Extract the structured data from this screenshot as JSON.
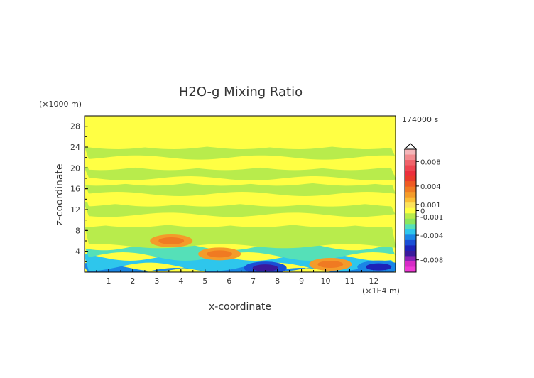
{
  "chart_data": {
    "type": "heatmap",
    "title": "H2O-g Mixing Ratio",
    "xlabel": "x-coordinate",
    "ylabel": "z-coordinate",
    "x_unit": "(×1E4 m)",
    "y_unit": "(×1000 m)",
    "time_label": "174000 s",
    "xlim": [
      0,
      12.9
    ],
    "ylim": [
      0,
      30
    ],
    "x_ticks": [
      "1",
      "2",
      "3",
      "4",
      "5",
      "6",
      "7",
      "8",
      "9",
      "10",
      "11",
      "12"
    ],
    "y_ticks": [
      "4",
      "8",
      "12",
      "16",
      "20",
      "24",
      "28"
    ],
    "colorbar": {
      "labels": [
        "0.008",
        "0.004",
        "0.001",
        "0",
        "-0.001",
        "-0.004",
        "-0.008"
      ],
      "levels": [
        {
          "value": 0.01,
          "color": "#f4b6b9"
        },
        {
          "value": 0.009,
          "color": "#f28c90"
        },
        {
          "value": 0.008,
          "color": "#f0636a"
        },
        {
          "value": 0.007,
          "color": "#ee4550"
        },
        {
          "value": 0.006,
          "color": "#ec2f3d"
        },
        {
          "value": 0.005,
          "color": "#ea3a2b"
        },
        {
          "value": 0.004,
          "color": "#ee5a24"
        },
        {
          "value": 0.003,
          "color": "#f07a22"
        },
        {
          "value": 0.002,
          "color": "#f49b2a"
        },
        {
          "value": 0.001,
          "color": "#fbbd34"
        },
        {
          "value": 0.0005,
          "color": "#fce25a"
        },
        {
          "value": 0.0,
          "color": "#ffff44"
        },
        {
          "value": -0.0005,
          "color": "#b8ec4c"
        },
        {
          "value": -0.001,
          "color": "#8ce65c"
        },
        {
          "value": -0.002,
          "color": "#55e0b8"
        },
        {
          "value": -0.003,
          "color": "#2ec6ec"
        },
        {
          "value": -0.004,
          "color": "#1a86e6"
        },
        {
          "value": -0.005,
          "color": "#1a4fd6"
        },
        {
          "value": -0.006,
          "color": "#1d22b8"
        },
        {
          "value": -0.007,
          "color": "#3a1a9c"
        },
        {
          "value": -0.008,
          "color": "#8a22b6"
        },
        {
          "value": -0.009,
          "color": "#d62cc6"
        },
        {
          "value": -0.01,
          "color": "#f03ad6"
        }
      ]
    },
    "field_bands": [
      {
        "z": [
          0,
          1
        ],
        "value": -0.004
      },
      {
        "z": [
          1,
          3
        ],
        "value": -0.003
      },
      {
        "z": [
          3,
          5
        ],
        "value": -0.002
      },
      {
        "z": [
          5,
          9
        ],
        "value": -0.0005
      },
      {
        "z": [
          9,
          11
        ],
        "value": 0.0
      },
      {
        "z": [
          11,
          13
        ],
        "value": -0.0005
      },
      {
        "z": [
          13,
          15
        ],
        "value": 0.0
      },
      {
        "z": [
          15,
          17
        ],
        "value": -0.0005
      },
      {
        "z": [
          17,
          18
        ],
        "value": 0.0
      },
      {
        "z": [
          18,
          20
        ],
        "value": -0.0005
      },
      {
        "z": [
          20,
          22
        ],
        "value": 0.0
      },
      {
        "z": [
          22,
          24
        ],
        "value": -0.0005
      },
      {
        "z": [
          24,
          30
        ],
        "value": 0.0
      }
    ],
    "features": [
      {
        "x": 3.6,
        "z": 6.0,
        "value": 0.002
      },
      {
        "x": 5.6,
        "z": 3.5,
        "value": 0.002
      },
      {
        "x": 7.5,
        "z": 0.8,
        "value": -0.005
      },
      {
        "x": 10.2,
        "z": 1.5,
        "value": 0.002
      },
      {
        "x": 12.2,
        "z": 1.0,
        "value": -0.004
      }
    ]
  }
}
